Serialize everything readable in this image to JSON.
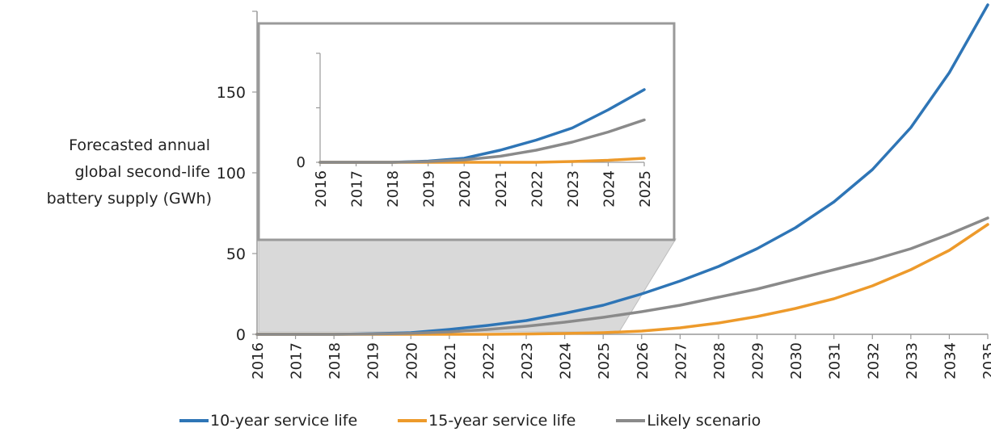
{
  "chart_data": [
    {
      "type": "line",
      "ylabel": [
        "Forecasted annual",
        "global second-life",
        "battery supply (GWh)"
      ],
      "x": [
        "2016",
        "2017",
        "2018",
        "2019",
        "2020",
        "2021",
        "2022",
        "2023",
        "2024",
        "2025",
        "2026",
        "2027",
        "2028",
        "2029",
        "2030",
        "2031",
        "2032",
        "2033",
        "2034",
        "2035"
      ],
      "ylim": [
        0,
        200
      ],
      "yticks": [
        0,
        50,
        100,
        150
      ],
      "series": [
        {
          "name": "10-year service life",
          "color": "#2e75b6",
          "values": [
            0,
            0,
            0,
            0.3,
            1,
            3,
            5.5,
            8.5,
            13,
            18,
            25,
            33,
            42,
            53,
            66,
            82,
            102,
            128,
            162,
            204
          ]
        },
        {
          "name": "15-year service life",
          "color": "#ed9a2b",
          "values": [
            0,
            0,
            0,
            0,
            0,
            0,
            0,
            0.2,
            0.5,
            1,
            2,
            4,
            7,
            11,
            16,
            22,
            30,
            40,
            52,
            68
          ]
        },
        {
          "name": "Likely scenario",
          "color": "#8a8a8a",
          "values": [
            0,
            0,
            0,
            0.2,
            0.6,
            1.5,
            3,
            5,
            7.5,
            10.5,
            14,
            18,
            23,
            28,
            34,
            40,
            46,
            53,
            62,
            72
          ]
        }
      ]
    },
    {
      "type": "line",
      "x": [
        "2016",
        "2017",
        "2018",
        "2019",
        "2020",
        "2021",
        "2022",
        "2023",
        "2024",
        "2025"
      ],
      "yticks": [
        0
      ],
      "series": [
        {
          "name": "10-year service life",
          "color": "#2e75b6",
          "values": [
            0,
            0,
            0,
            0.3,
            1,
            3,
            5.5,
            8.5,
            13,
            18
          ]
        },
        {
          "name": "15-year service life",
          "color": "#ed9a2b",
          "values": [
            0,
            0,
            0,
            0,
            0,
            0,
            0,
            0.2,
            0.5,
            1
          ]
        },
        {
          "name": "Likely scenario",
          "color": "#8a8a8a",
          "values": [
            0,
            0,
            0,
            0.2,
            0.6,
            1.5,
            3,
            5,
            7.5,
            10.5
          ]
        }
      ]
    }
  ]
}
